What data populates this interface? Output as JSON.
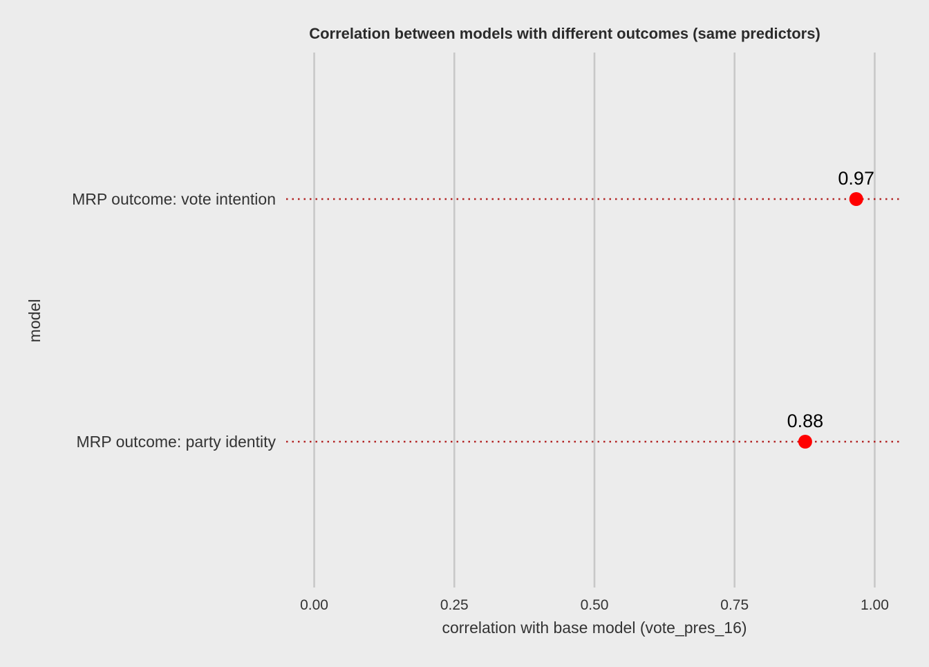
{
  "chart_data": {
    "type": "scatter",
    "title": "Correlation between models with different outcomes (same predictors)",
    "xlabel": "correlation with base model (vote_pres_16)",
    "ylabel": "model",
    "categories": [
      "MRP outcome: vote intention",
      "MRP outcome: party identity"
    ],
    "values": [
      0.967,
      0.876
    ],
    "data_labels": [
      "0.97",
      "0.88"
    ],
    "xlim": [
      -0.05,
      1.05
    ],
    "xticks": [
      0,
      0.25,
      0.5,
      0.75,
      1
    ],
    "xtick_labels": [
      "0.00",
      "0.25",
      "0.50",
      "0.75",
      "1.00"
    ],
    "grid": "vertical major gridlines",
    "point_color": "#ff0000",
    "leader_line_color": "#b22222",
    "background_color": "#ececec",
    "grid_color": "#c8c8c8"
  }
}
